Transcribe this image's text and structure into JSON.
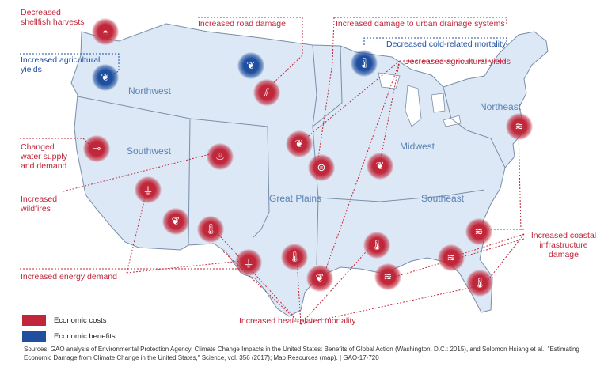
{
  "colors": {
    "cost": "#c0273a",
    "benefit": "#1f4f9e",
    "land": "#dce8f5",
    "border": "#7a8ea8"
  },
  "labels": {
    "shellfish": "Decreased\nshellfish harvests",
    "road": "Increased road damage",
    "drainage": "Increased damage to urban drainage systems",
    "cold": "Decreased cold-related mortality",
    "ag_dec": "Decreased agricultural yields",
    "ag_inc": "Increased agricultural\nyields",
    "water": "Changed\nwater supply\nand demand",
    "wildfires": "Increased\nwildfires",
    "energy": "Increased energy demand",
    "heat": "Increased heat-related mortality",
    "coastal": "Increased coastal\ninfrastructure damage"
  },
  "regions": {
    "northwest": "Northwest",
    "southwest": "Southwest",
    "great_plains": "Great Plains",
    "midwest": "Midwest",
    "southeast": "Southeast",
    "northeast": "Northeast"
  },
  "legend": {
    "costs": "Economic costs",
    "benefits": "Economic benefits"
  },
  "source": {
    "text": "Sources: GAO analysis of Environmental Protection Agency, Climate Change Impacts in the United States: Benefits of Global Action (Washington, D.C.: 2015), and Solomon Hsiang et al., \"Estimating Economic Damage from Climate Change in the United States,\" Science, vol. 356 (2017); Map Resources (map).  |  GAO-17-720"
  },
  "icons": [
    {
      "name": "shellfish-icon",
      "type": "cost",
      "glyph": "◓"
    },
    {
      "name": "wheat-icon",
      "type": "benefit",
      "glyph": "❦"
    },
    {
      "name": "wheat-icon",
      "type": "benefit",
      "glyph": "❦"
    },
    {
      "name": "thermometer-icon",
      "type": "benefit",
      "glyph": "🌡"
    },
    {
      "name": "road-icon",
      "type": "cost",
      "glyph": "⫽"
    },
    {
      "name": "faucet-icon",
      "type": "cost",
      "glyph": "⊸"
    },
    {
      "name": "fire-icon",
      "type": "cost",
      "glyph": "♨"
    },
    {
      "name": "wheat-icon",
      "type": "cost",
      "glyph": "❦"
    },
    {
      "name": "wheat-icon",
      "type": "cost",
      "glyph": "❦"
    },
    {
      "name": "drain-icon",
      "type": "cost",
      "glyph": "⊜"
    },
    {
      "name": "plug-icon",
      "type": "cost",
      "glyph": "⏚"
    },
    {
      "name": "wheat-icon",
      "type": "cost",
      "glyph": "❦"
    },
    {
      "name": "thermometer-icon",
      "type": "cost",
      "glyph": "🌡"
    },
    {
      "name": "plug-icon",
      "type": "cost",
      "glyph": "⏚"
    },
    {
      "name": "thermometer-icon",
      "type": "cost",
      "glyph": "🌡"
    },
    {
      "name": "wheat-icon",
      "type": "cost",
      "glyph": "❦"
    },
    {
      "name": "thermometer-icon",
      "type": "cost",
      "glyph": "🌡"
    },
    {
      "name": "wave-icon",
      "type": "cost",
      "glyph": "≋"
    },
    {
      "name": "wave-icon",
      "type": "cost",
      "glyph": "≋"
    },
    {
      "name": "wave-icon",
      "type": "cost",
      "glyph": "≋"
    },
    {
      "name": "thermometer-icon",
      "type": "cost",
      "glyph": "🌡"
    },
    {
      "name": "wave-icon",
      "type": "cost",
      "glyph": "≋"
    }
  ]
}
